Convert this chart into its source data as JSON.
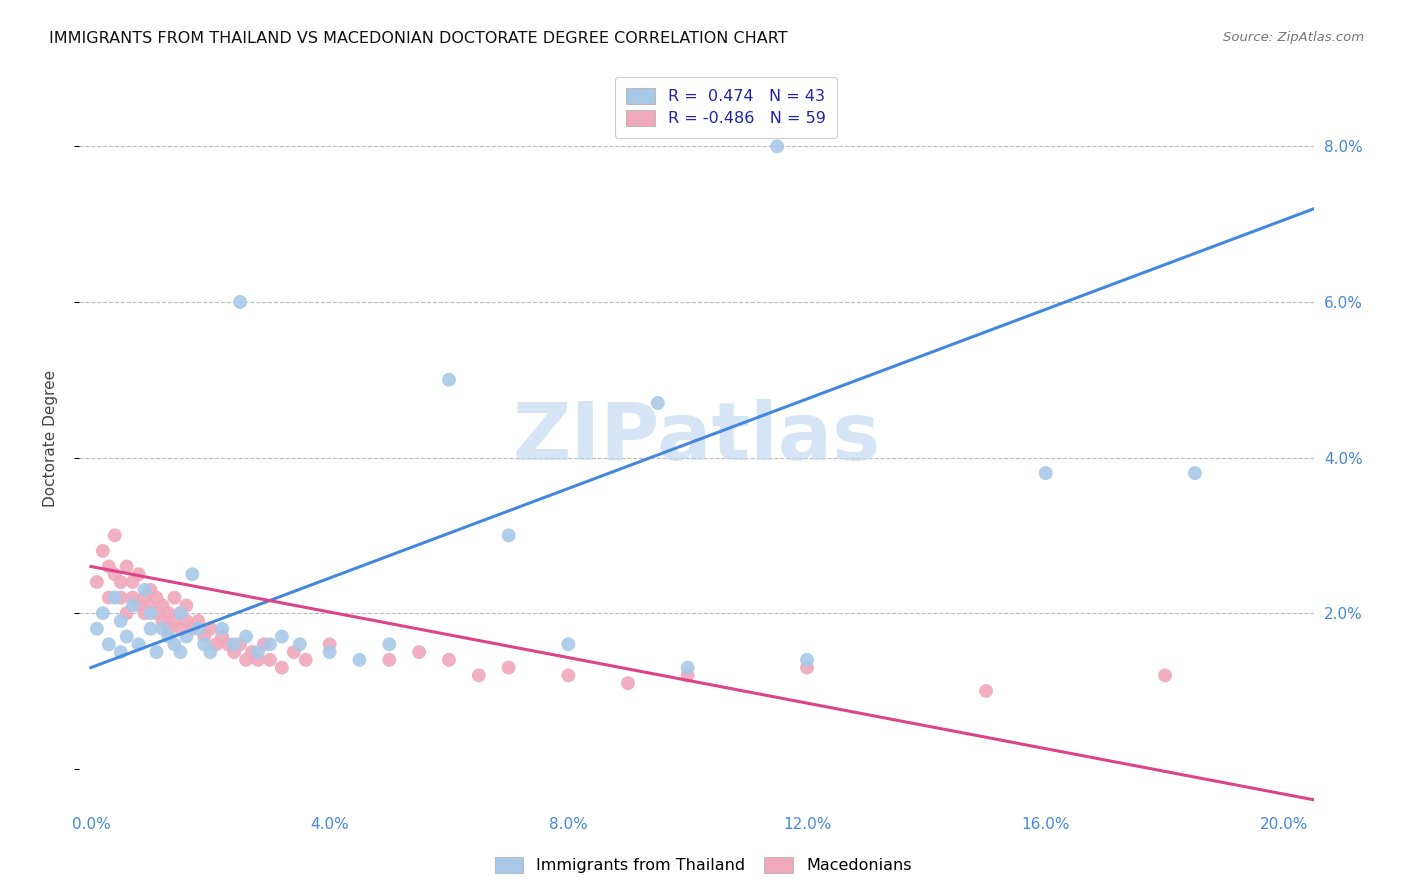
{
  "title": "IMMIGRANTS FROM THAILAND VS MACEDONIAN DOCTORATE DEGREE CORRELATION CHART",
  "source": "Source: ZipAtlas.com",
  "ylabel": "Doctorate Degree",
  "ytick_values": [
    0.0,
    0.02,
    0.04,
    0.06,
    0.08
  ],
  "xtick_values": [
    0.0,
    0.04,
    0.08,
    0.12,
    0.16,
    0.2
  ],
  "xlim": [
    -0.002,
    0.205
  ],
  "ylim": [
    -0.005,
    0.09
  ],
  "legend_r1": "R =  0.474   N = 43",
  "legend_r2": "R = -0.486   N = 59",
  "watermark": "ZIPatlas",
  "blue_color": "#A8C8E8",
  "pink_color": "#F0A8BC",
  "blue_line_color": "#4488DD",
  "pink_line_color": "#DD4488",
  "blue_line": {
    "x0": 0.0,
    "y0": 0.013,
    "x1": 0.205,
    "y1": 0.072
  },
  "pink_line": {
    "x0": 0.0,
    "y0": 0.026,
    "x1": 0.205,
    "y1": -0.004
  },
  "blue_scatter": {
    "x": [
      0.001,
      0.002,
      0.003,
      0.004,
      0.005,
      0.005,
      0.006,
      0.007,
      0.008,
      0.009,
      0.01,
      0.01,
      0.011,
      0.012,
      0.013,
      0.014,
      0.015,
      0.015,
      0.016,
      0.017,
      0.018,
      0.019,
      0.02,
      0.022,
      0.024,
      0.026,
      0.028,
      0.03,
      0.032,
      0.035,
      0.04,
      0.045,
      0.05,
      0.06,
      0.07,
      0.08,
      0.095,
      0.1,
      0.12,
      0.16,
      0.025,
      0.115,
      0.185
    ],
    "y": [
      0.018,
      0.02,
      0.016,
      0.022,
      0.015,
      0.019,
      0.017,
      0.021,
      0.016,
      0.023,
      0.018,
      0.02,
      0.015,
      0.018,
      0.017,
      0.016,
      0.02,
      0.015,
      0.017,
      0.025,
      0.018,
      0.016,
      0.015,
      0.018,
      0.016,
      0.017,
      0.015,
      0.016,
      0.017,
      0.016,
      0.015,
      0.014,
      0.016,
      0.05,
      0.03,
      0.016,
      0.047,
      0.013,
      0.014,
      0.038,
      0.06,
      0.08,
      0.038
    ]
  },
  "pink_scatter": {
    "x": [
      0.001,
      0.002,
      0.003,
      0.003,
      0.004,
      0.004,
      0.005,
      0.005,
      0.006,
      0.006,
      0.007,
      0.007,
      0.008,
      0.008,
      0.009,
      0.009,
      0.01,
      0.01,
      0.011,
      0.011,
      0.012,
      0.012,
      0.013,
      0.013,
      0.014,
      0.014,
      0.015,
      0.015,
      0.016,
      0.016,
      0.017,
      0.018,
      0.019,
      0.02,
      0.021,
      0.022,
      0.023,
      0.024,
      0.025,
      0.026,
      0.027,
      0.028,
      0.029,
      0.03,
      0.032,
      0.034,
      0.036,
      0.04,
      0.05,
      0.055,
      0.06,
      0.065,
      0.07,
      0.08,
      0.09,
      0.1,
      0.12,
      0.15,
      0.18
    ],
    "y": [
      0.024,
      0.028,
      0.022,
      0.026,
      0.025,
      0.03,
      0.022,
      0.024,
      0.02,
      0.026,
      0.022,
      0.024,
      0.021,
      0.025,
      0.022,
      0.02,
      0.021,
      0.023,
      0.02,
      0.022,
      0.019,
      0.021,
      0.02,
      0.018,
      0.019,
      0.022,
      0.018,
      0.02,
      0.019,
      0.021,
      0.018,
      0.019,
      0.017,
      0.018,
      0.016,
      0.017,
      0.016,
      0.015,
      0.016,
      0.014,
      0.015,
      0.014,
      0.016,
      0.014,
      0.013,
      0.015,
      0.014,
      0.016,
      0.014,
      0.015,
      0.014,
      0.012,
      0.013,
      0.012,
      0.011,
      0.012,
      0.013,
      0.01,
      0.012
    ]
  }
}
